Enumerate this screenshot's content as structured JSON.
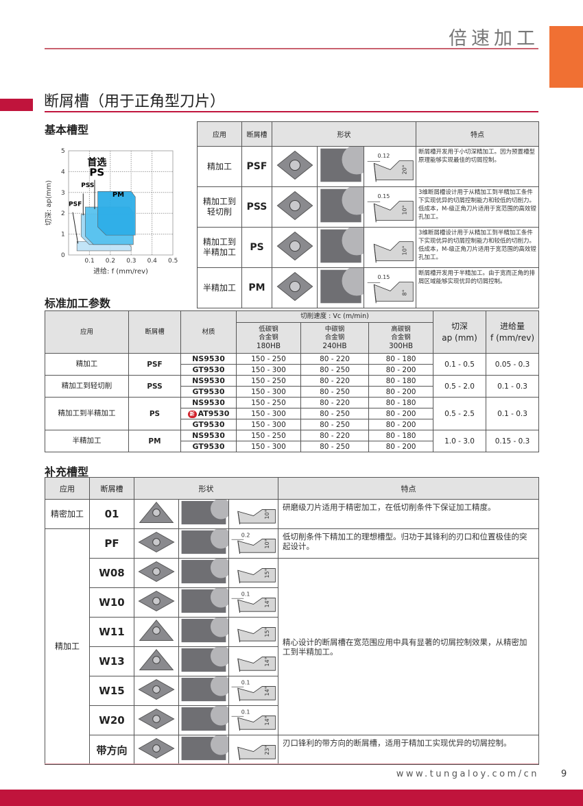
{
  "header": {
    "title": "倍速加工",
    "accent": "#f07033",
    "brand_red": "#c0143c"
  },
  "section": {
    "title": "断屑槽（用于正角型刀片）"
  },
  "basic": {
    "title": "基本槽型",
    "chart": {
      "type": "area",
      "xlabel": "进给: f (mm/rev)",
      "ylabel": "切深: ap(mm)",
      "x_ticks": [
        "0.1",
        "0.2",
        "0.3",
        "0.4",
        "0.5"
      ],
      "y_ticks": [
        "0",
        "1",
        "2",
        "3",
        "4",
        "5"
      ],
      "xlim": [
        0,
        0.5
      ],
      "ylim": [
        0,
        5
      ],
      "grid": true,
      "preferred_label": "首选",
      "preferred_groove": "PS",
      "regions": [
        {
          "name": "PSF",
          "f": [
            0.04,
            0.3
          ],
          "ap": [
            0.2,
            0.65
          ]
        },
        {
          "name": "PSS",
          "f": [
            0.06,
            0.31
          ],
          "ap": [
            0.5,
            1.95
          ]
        },
        {
          "name": "PS",
          "f": [
            0.08,
            0.31
          ],
          "ap": [
            0.5,
            2.3
          ]
        },
        {
          "name": "PM",
          "f": [
            0.14,
            0.32
          ],
          "ap": [
            0.95,
            3.05
          ]
        }
      ]
    },
    "table": {
      "headers": [
        "应用",
        "断屑槽",
        "形状",
        "特点"
      ],
      "rows": [
        {
          "app": "精加工",
          "groove": "PSF",
          "land": "0.12",
          "angle": "20°",
          "desc": "断屑槽开发用于小切深精加工。因为预置槽型原理能够实现最佳的切屑控制。"
        },
        {
          "app": "精加工到轻切削",
          "groove": "PSS",
          "land": "0.15",
          "angle": "10°",
          "desc": "3维断屑槽设计用于从精加工到半精加工条件下实现优异的切屑控制能力和较低的切削力。低成本，M-级正角刀片适用于宽范围的高效镗孔加工。"
        },
        {
          "app": "精加工到半精加工",
          "groove": "PS",
          "land": "",
          "angle": "10°",
          "desc": "3维断屑槽设计用于从精加工到半精加工条件下实现优异的切屑控制能力和较低的切削力。低成本，M-级正角刀片适用于宽范围的高效镗孔加工。"
        },
        {
          "app": "半精加工",
          "groove": "PM",
          "land": "0.15",
          "angle": "8°",
          "desc": "断屑槽开发用于半精加工。由于宽而正角的排屑区域能够实现优异的切屑控制。"
        }
      ]
    }
  },
  "params": {
    "title": "标准加工参数",
    "headers": {
      "app": "应用",
      "groove": "断屑槽",
      "grade": "材质",
      "speed": "切削速度 : Vc (m/min)",
      "ap": "切深",
      "ap_unit": "ap (mm)",
      "f": "进给量",
      "f_unit": "f (mm/rev)",
      "materials": [
        [
          "低碳钢",
          "合金钢",
          "180HB"
        ],
        [
          "中碳钢",
          "合金钢",
          "240HB"
        ],
        [
          "高碳钢",
          "合金钢",
          "300HB"
        ]
      ]
    },
    "new_badge": "新",
    "groups": [
      {
        "app": "精加工",
        "groove": "PSF",
        "ap": "0.1 - 0.5",
        "f": "0.05 - 0.3",
        "rows": [
          {
            "grade": "NS9530",
            "v": [
              "150 - 250",
              "80 - 220",
              "80 - 180"
            ]
          },
          {
            "grade": "GT9530",
            "v": [
              "150 - 300",
              "80 - 250",
              "80 - 200"
            ]
          }
        ]
      },
      {
        "app": "精加工到轻切削",
        "groove": "PSS",
        "ap": "0.5 - 2.0",
        "f": "0.1 - 0.3",
        "rows": [
          {
            "grade": "NS9530",
            "v": [
              "150 - 250",
              "80 - 220",
              "80 - 180"
            ]
          },
          {
            "grade": "GT9530",
            "v": [
              "150 - 300",
              "80 - 250",
              "80 - 200"
            ]
          }
        ]
      },
      {
        "app": "精加工到半精加工",
        "groove": "PS",
        "ap": "0.5 - 2.5",
        "f": "0.1 - 0.3",
        "rows": [
          {
            "grade": "NS9530",
            "v": [
              "150 - 250",
              "80 - 220",
              "80 - 180"
            ]
          },
          {
            "grade": "AT9530",
            "new": true,
            "v": [
              "150 - 300",
              "80 - 250",
              "80 - 200"
            ]
          },
          {
            "grade": "GT9530",
            "v": [
              "150 - 300",
              "80 - 250",
              "80 - 200"
            ]
          }
        ]
      },
      {
        "app": "半精加工",
        "groove": "PM",
        "ap": "1.0 - 3.0",
        "f": "0.15 - 0.3",
        "rows": [
          {
            "grade": "NS9530",
            "v": [
              "150 - 250",
              "80 - 220",
              "80 - 180"
            ]
          },
          {
            "grade": "GT9530",
            "v": [
              "150 - 300",
              "80 - 250",
              "80 - 200"
            ]
          }
        ]
      }
    ]
  },
  "supp": {
    "title": "补充槽型",
    "headers": [
      "应用",
      "断屑槽",
      "形状",
      "特点"
    ],
    "app_precision": "精密加工",
    "app_finish": "精加工",
    "shared_desc": "精心设计的断屑槽在宽范围应用中具有显著的切屑控制效果，从精密加工到半精加工。",
    "rows": [
      {
        "groove": "01",
        "land": "",
        "angle": "10°",
        "desc": "研磨级刀片适用于精密加工，在低切削条件下保证加工精度。"
      },
      {
        "groove": "PF",
        "land": "0.2",
        "angle": "10°",
        "desc": "低切削条件下精加工的理想槽型。归功于其锋利的刃口和位置极佳的突起设计。"
      },
      {
        "groove": "W08",
        "land": "",
        "angle": "15°"
      },
      {
        "groove": "W10",
        "land": "0.1",
        "angle": "14°"
      },
      {
        "groove": "W11",
        "land": "",
        "angle": "15°"
      },
      {
        "groove": "W13",
        "land": "",
        "angle": "14°"
      },
      {
        "groove": "W15",
        "land": "0.1",
        "angle": "14°"
      },
      {
        "groove": "W20",
        "land": "0.1",
        "angle": "14°"
      },
      {
        "groove": "带方向",
        "land": "",
        "angle": "23°",
        "desc": "刃口锋利的带方向的断屑槽，适用于精加工实现优异的切屑控制。"
      }
    ]
  },
  "footer": {
    "url": "www.tungaloy.com/cn",
    "page": "9"
  }
}
